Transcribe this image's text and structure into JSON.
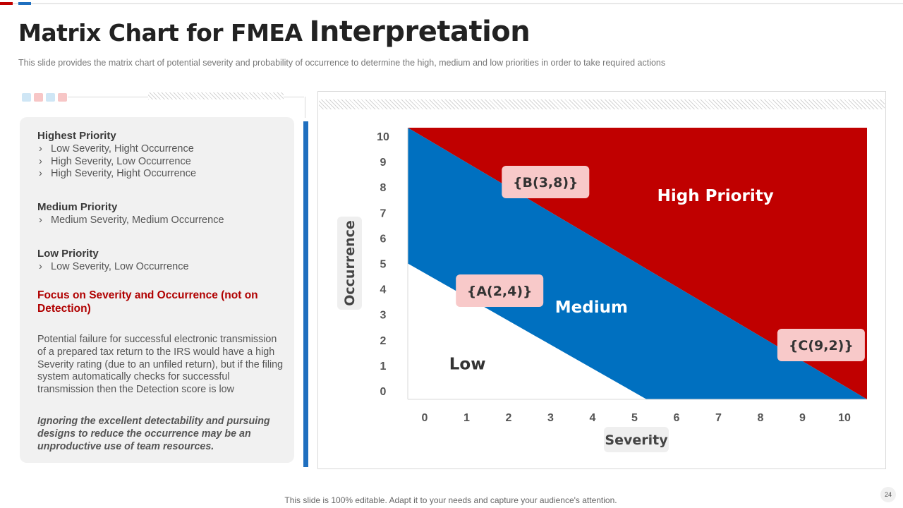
{
  "slide": {
    "title_part1": "Matrix Chart for FMEA",
    "title_part2": "Interpretation",
    "subtitle": "This slide provides  the matrix chart of potential severity  and probability of occurrence to determine the high, medium and low priorities in order to take required  actions",
    "footer": "This slide is 100% editable. Adapt it to your needs and capture your audience's attention.",
    "page_number": "24"
  },
  "decor_colors": [
    "#cfe6f5",
    "#f7c6c6",
    "#cfe6f5",
    "#f7c6c6"
  ],
  "left_panel": {
    "groups": [
      {
        "heading": "Highest Priority",
        "items": [
          "Low Severity, Hight Occurrence",
          "High Severity, Low Occurrence",
          "High Severity, Hight Occurrence"
        ]
      },
      {
        "heading": "Medium Priority",
        "items": [
          "Medium Severity, Medium Occurrence"
        ]
      },
      {
        "heading": "Low Priority",
        "items": [
          "Low Severity, Low Occurrence"
        ]
      }
    ],
    "focus_note": "Focus on Severity  and Occurrence (not on Detection)",
    "paragraph": "Potential failure for successful electronic transmission of a prepared tax return to the IRS would have a high Severity rating (due to an unfiled return), but if the filing system automatically checks for successful transmission then the Detection score is low",
    "italic_note": "Ignoring the excellent detectability and pursuing designs to reduce the occurrence may be an unproductive use of team resources."
  },
  "chart_data": {
    "type": "area",
    "title": "",
    "xlabel": "Severity",
    "ylabel": "Occurrence",
    "xlim": [
      0,
      10
    ],
    "ylim": [
      0,
      10
    ],
    "x_ticks": [
      "0",
      "1",
      "2",
      "3",
      "4",
      "5",
      "6",
      "7",
      "8",
      "9",
      "10"
    ],
    "y_ticks": [
      "0",
      "1",
      "2",
      "3",
      "4",
      "5",
      "6",
      "7",
      "8",
      "9",
      "10"
    ],
    "regions": [
      {
        "name": "High Priority",
        "color": "#c00000",
        "boundary": [
          [
            0,
            10
          ],
          [
            10,
            10
          ],
          [
            10,
            0
          ]
        ],
        "label_at": [
          6.7,
          7.3
        ]
      },
      {
        "name": "Medium",
        "color": "#0070c0",
        "boundary": [
          [
            0,
            10
          ],
          [
            10,
            0
          ],
          [
            5.2,
            0
          ],
          [
            0,
            5
          ]
        ],
        "label_at": [
          4.0,
          3.2
        ]
      },
      {
        "name": "Low",
        "color": "#ffffff",
        "boundary": [
          [
            0,
            5
          ],
          [
            5.2,
            0
          ],
          [
            0,
            0
          ]
        ],
        "label_at": [
          1.3,
          1.1
        ]
      }
    ],
    "points": [
      {
        "label": "{B(3,8)}",
        "x": 3,
        "y": 8
      },
      {
        "label": "{A(2,4)}",
        "x": 2,
        "y": 4
      },
      {
        "label": "{C(9,2)}",
        "x": 9,
        "y": 2
      }
    ],
    "point_box_color": "#f8c9c9",
    "region_label_colors": {
      "High Priority": "#ffffff",
      "Medium": "#ffffff",
      "Low": "#333333"
    }
  }
}
